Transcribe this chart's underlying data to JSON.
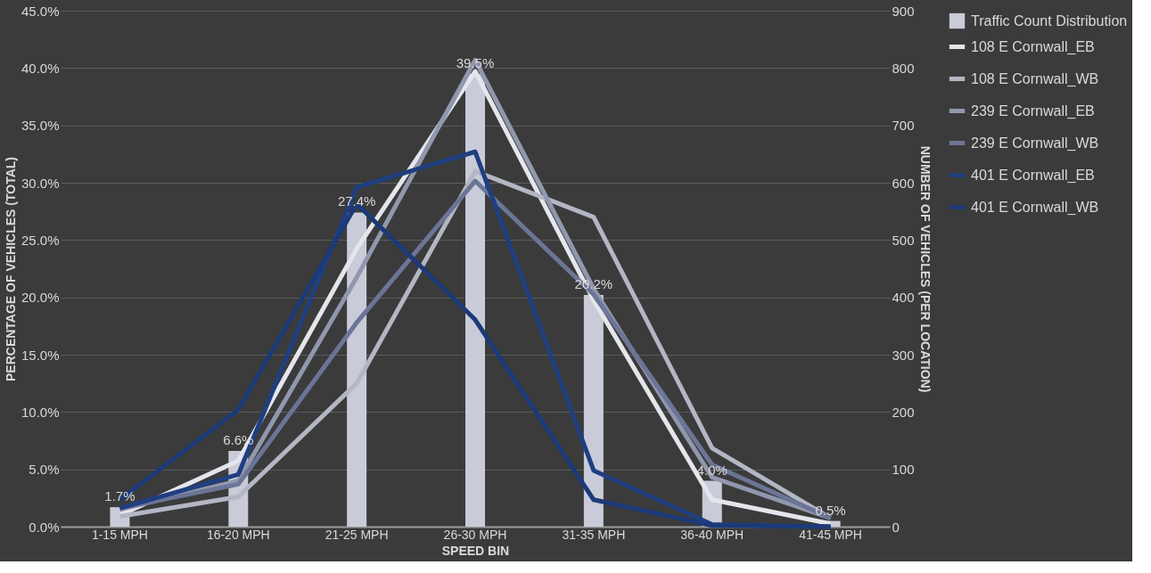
{
  "chart_data": {
    "type": "bar",
    "xlabel": "SPEED BIN",
    "ylabel": "PERCENTAGE OF  VEHICLES (TOTAL)",
    "y2label": "NUMBER OF VEHICLES (PER LOCATION)",
    "categories": [
      "1-15 MPH",
      "16-20 MPH",
      "21-25 MPH",
      "26-30 MPH",
      "31-35 MPH",
      "36-40 MPH",
      "41-45 MPH"
    ],
    "series": [
      {
        "name": "Traffic Count Distribution",
        "color": "#c9cbd8",
        "values": [
          1.7,
          6.6,
          27.4,
          39.5,
          20.2,
          4.0,
          0.5
        ],
        "value_labels": [
          "1.7%",
          "6.6%",
          "27.4%",
          "39.5%",
          "20.2%",
          "4.0%",
          "0.5%"
        ]
      },
      {
        "name": "108 E Cornwall_EB",
        "type": "line",
        "axis": "y2",
        "color": "#e4e6ec",
        "values": [
          20,
          115,
          485,
          794,
          395,
          47,
          5
        ]
      },
      {
        "name": "108 E Cornwall_WB",
        "type": "line",
        "axis": "y2",
        "color": "#b3b6c3",
        "values": [
          18,
          52,
          250,
          620,
          540,
          137,
          15
        ]
      },
      {
        "name": "239 E Cornwall_EB",
        "type": "line",
        "axis": "y2",
        "color": "#9197ad",
        "values": [
          30,
          80,
          435,
          814,
          415,
          86,
          15
        ]
      },
      {
        "name": "239 E Cornwall_WB",
        "type": "line",
        "axis": "y2",
        "color": "#6b7597",
        "values": [
          32,
          74,
          356,
          603,
          405,
          108,
          15
        ]
      },
      {
        "name": "401 E Cornwall_EB",
        "type": "line",
        "axis": "y2",
        "color": "#1f3f80",
        "values": [
          32,
          91,
          592,
          654,
          98,
          4,
          0
        ]
      },
      {
        "name": "401 E Cornwall_WB",
        "type": "line",
        "axis": "y2",
        "color": "#1c3a78",
        "values": [
          47,
          204,
          563,
          361,
          47,
          2,
          0
        ]
      }
    ],
    "ylim": [
      0,
      45
    ],
    "yticks": [
      {
        "value": 0,
        "label": "0.0%"
      },
      {
        "value": 5,
        "label": "5.0%"
      },
      {
        "value": 10,
        "label": "10.0%"
      },
      {
        "value": 15,
        "label": "15.0%"
      },
      {
        "value": 20,
        "label": "20.0%"
      },
      {
        "value": 25,
        "label": "25.0%"
      },
      {
        "value": 30,
        "label": "30.0%"
      },
      {
        "value": 35,
        "label": "35.0%"
      },
      {
        "value": 40,
        "label": "40.0%"
      },
      {
        "value": 45,
        "label": "45.0%"
      }
    ],
    "y2lim": [
      0,
      900
    ],
    "y2ticks": [
      0,
      100,
      200,
      300,
      400,
      500,
      600,
      700,
      800,
      900
    ],
    "grid": "y",
    "legend": "right",
    "marker": "none",
    "line_style": "solid"
  }
}
